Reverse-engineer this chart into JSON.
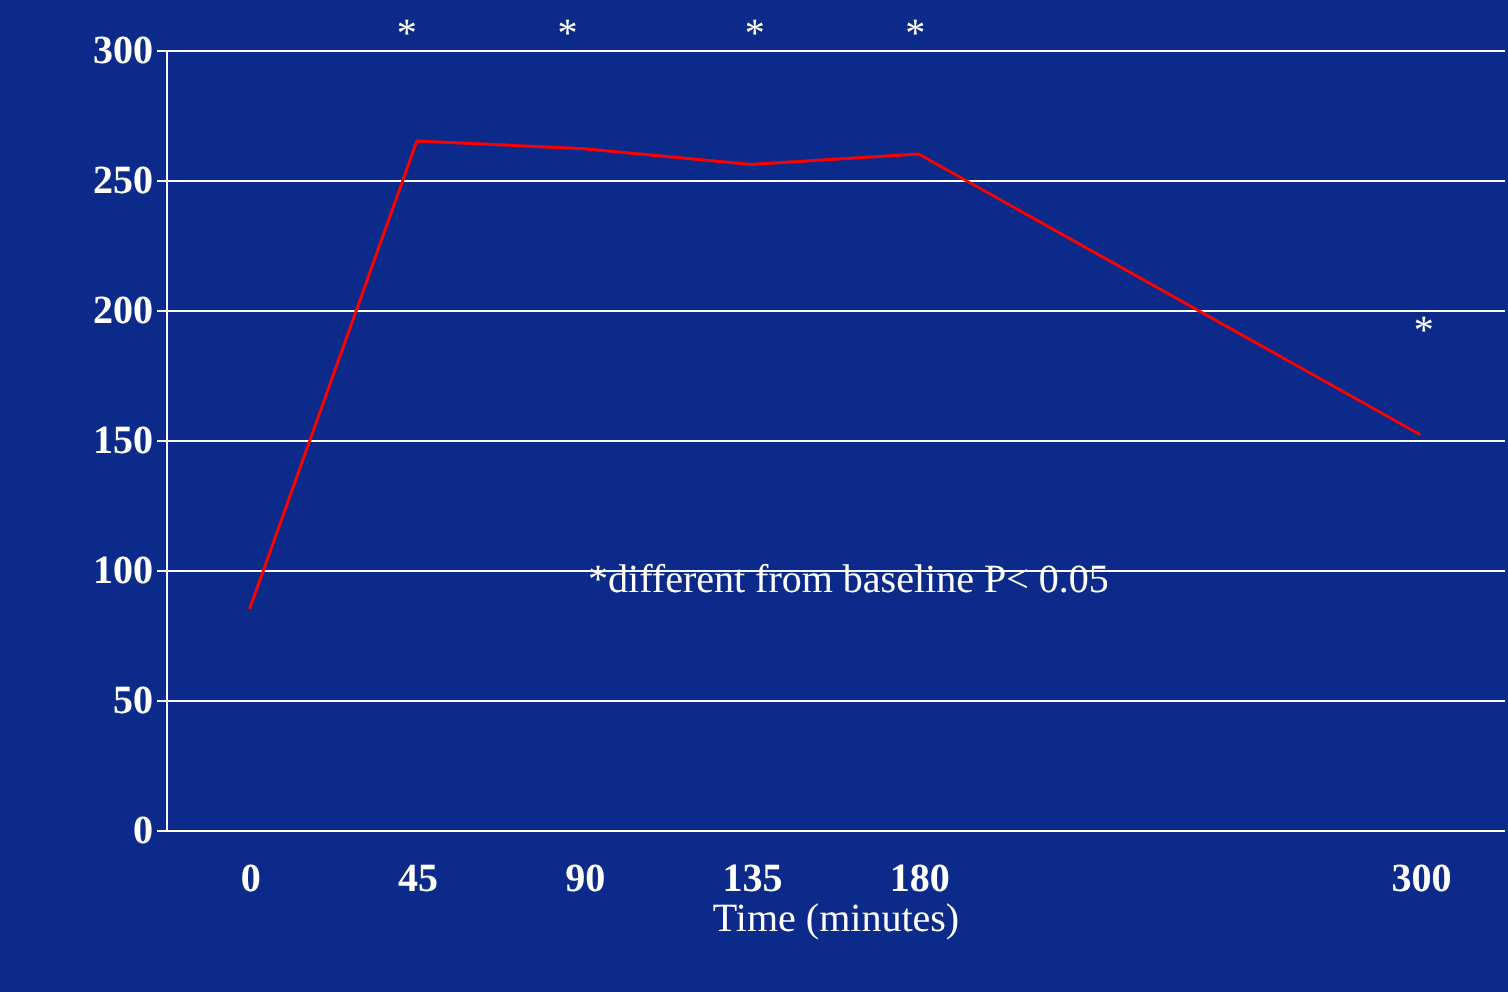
{
  "chart_data": {
    "type": "line",
    "xlabel": "Time (minutes)",
    "categories": [
      "0",
      "45",
      "90",
      "135",
      "180",
      null,
      null,
      "300"
    ],
    "series": [
      {
        "color": "#ff0000",
        "values": [
          85,
          265,
          262,
          256,
          260,
          null,
          null,
          152
        ]
      }
    ],
    "ylim": [
      0,
      300
    ],
    "yticks": [
      0,
      50,
      100,
      150,
      200,
      250,
      300
    ],
    "grid": "y",
    "marker": "none",
    "line_style": "solid",
    "annotations": [
      "*",
      "*",
      "*",
      "*",
      "*",
      "*different from baseline P< 0.05"
    ]
  }
}
